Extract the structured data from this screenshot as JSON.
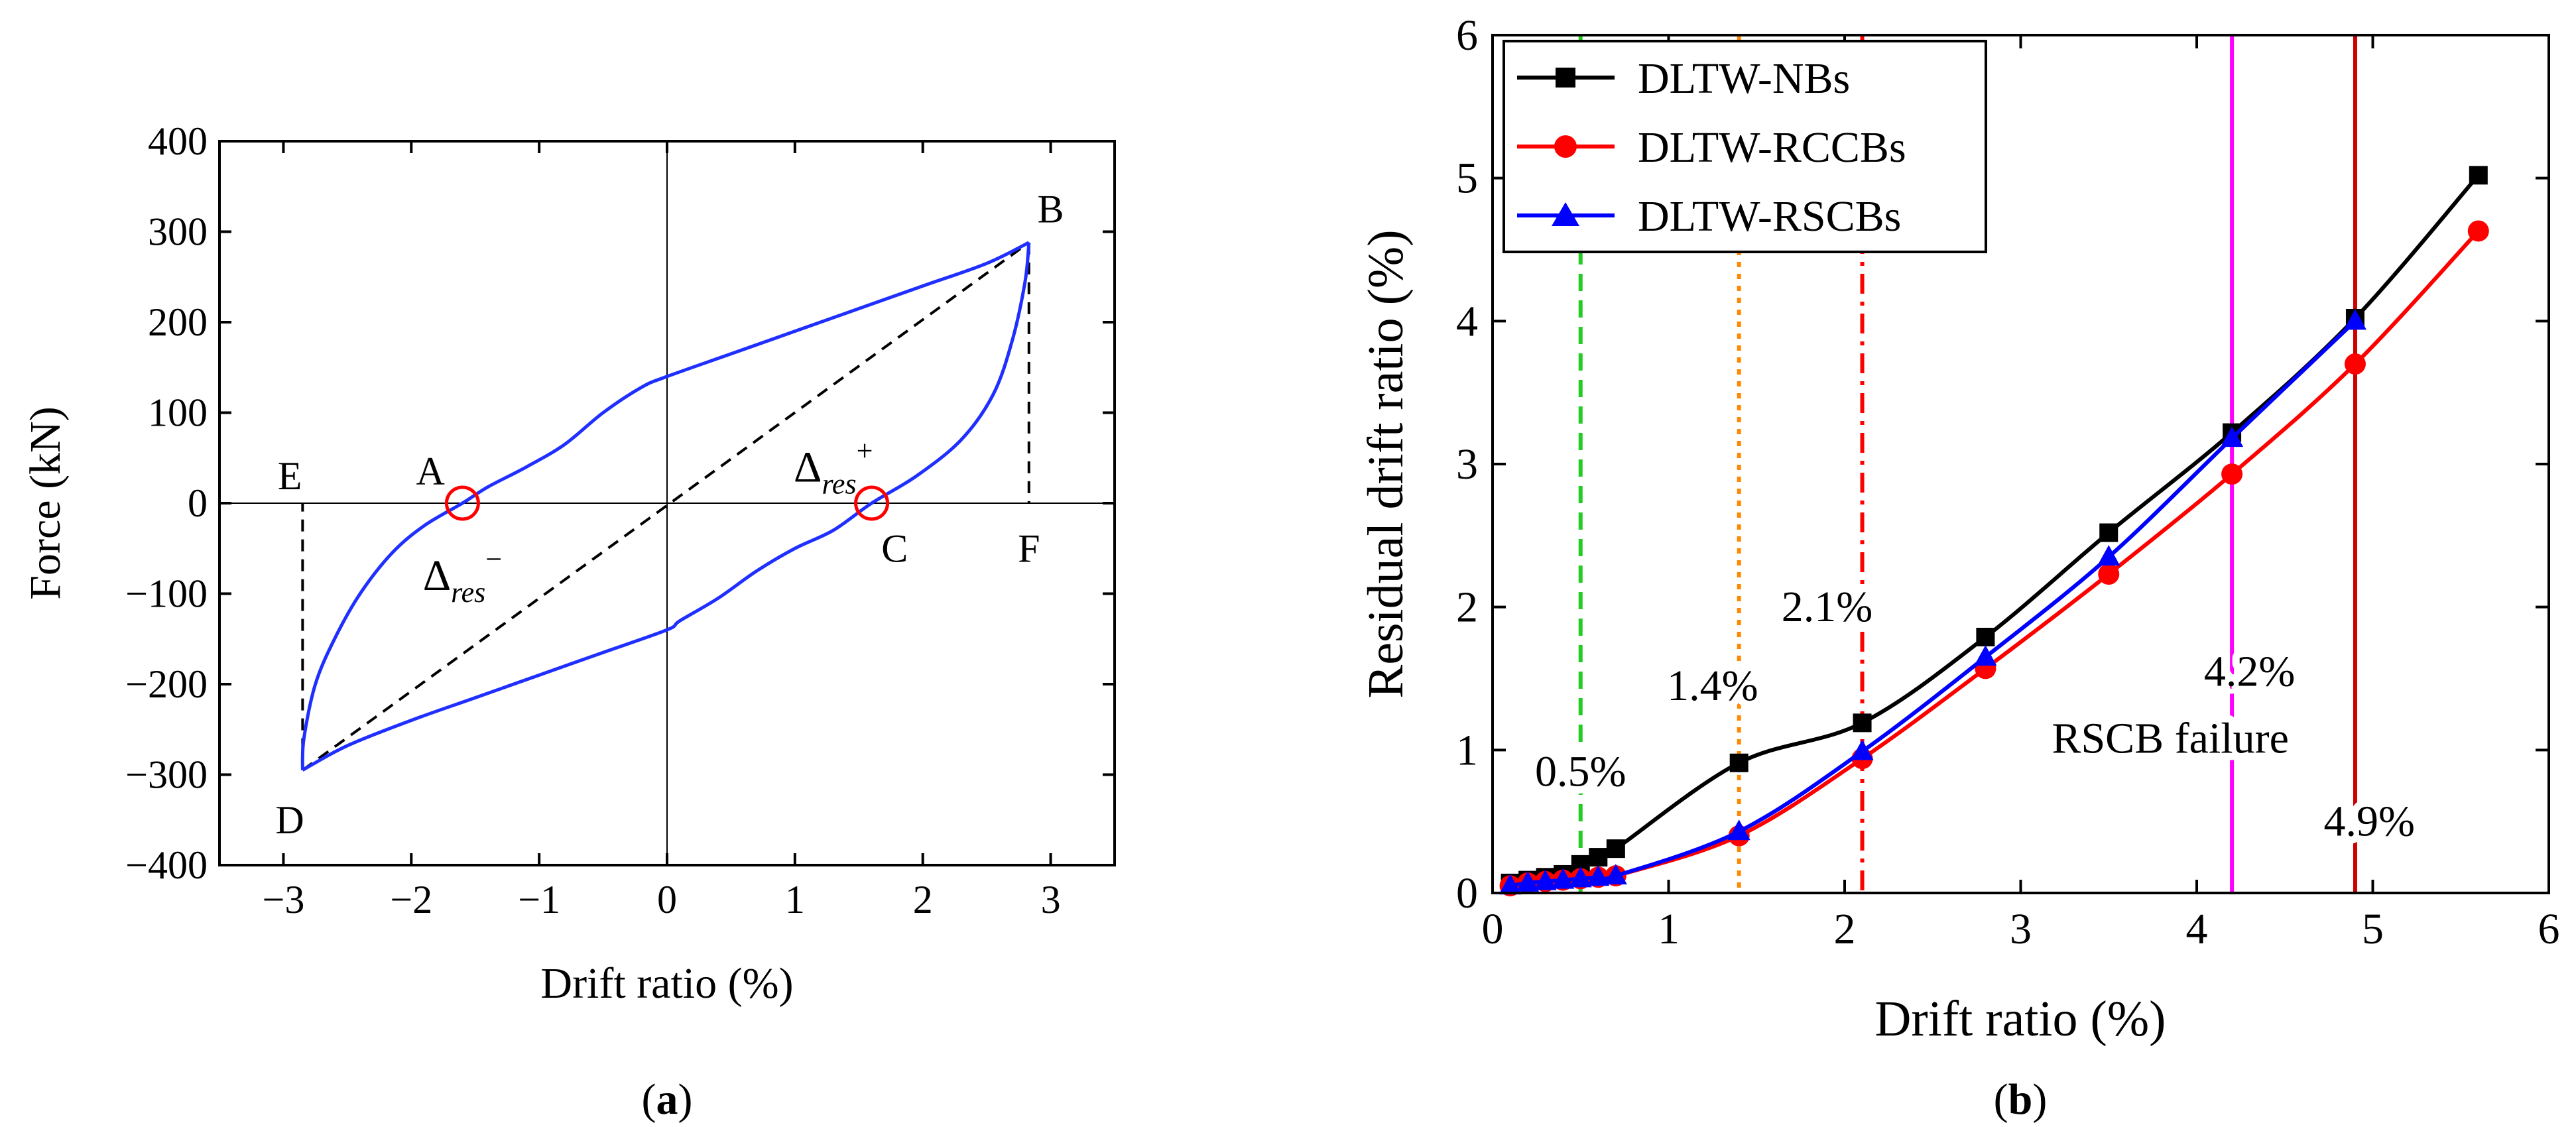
{
  "chart_data": [
    {
      "panel_label": "(a)",
      "panel_letter": "a",
      "type": "line",
      "title": "",
      "xlabel": "Drift ratio (%)",
      "ylabel": "Force (kN)",
      "xlim": [
        -3.5,
        3.5
      ],
      "ylim": [
        -400,
        400
      ],
      "xticks": [
        -3,
        -2,
        -1,
        0,
        1,
        2,
        3
      ],
      "xtick_labels": [
        "−3",
        "−2",
        "−1",
        "0",
        "1",
        "2",
        "3"
      ],
      "yticks": [
        -400,
        -300,
        -200,
        -100,
        0,
        100,
        200,
        300,
        400
      ],
      "ytick_labels": [
        "−400",
        "−300",
        "−200",
        "−100",
        "0",
        "100",
        "200",
        "300",
        "400"
      ],
      "hysteresis_loop": {
        "color": "#1f2fff",
        "upper_branch": [
          [
            -2.85,
            -295
          ],
          [
            -2.84,
            -260
          ],
          [
            -2.75,
            -200
          ],
          [
            -2.6,
            -150
          ],
          [
            -2.4,
            -100
          ],
          [
            -2.15,
            -55
          ],
          [
            -1.9,
            -25
          ],
          [
            -1.6,
            0
          ],
          [
            -1.4,
            18
          ],
          [
            -1.1,
            40
          ],
          [
            -0.8,
            65
          ],
          [
            -0.5,
            100
          ],
          [
            -0.2,
            128
          ],
          [
            0,
            140
          ],
          [
            0.5,
            165
          ],
          [
            1.0,
            190
          ],
          [
            1.5,
            215
          ],
          [
            2.0,
            240
          ],
          [
            2.5,
            265
          ],
          [
            2.83,
            288
          ]
        ],
        "lower_branch": [
          [
            2.83,
            288
          ],
          [
            2.8,
            245
          ],
          [
            2.7,
            180
          ],
          [
            2.55,
            120
          ],
          [
            2.3,
            70
          ],
          [
            1.95,
            30
          ],
          [
            1.6,
            0
          ],
          [
            1.3,
            -30
          ],
          [
            1.0,
            -50
          ],
          [
            0.7,
            -75
          ],
          [
            0.4,
            -105
          ],
          [
            0.1,
            -130
          ],
          [
            0,
            -140
          ],
          [
            -0.5,
            -165
          ],
          [
            -1.0,
            -190
          ],
          [
            -1.5,
            -215
          ],
          [
            -2.0,
            -240
          ],
          [
            -2.5,
            -268
          ],
          [
            -2.85,
            -295
          ]
        ]
      },
      "secant_line": [
        [
          -2.85,
          -295
        ],
        [
          2.83,
          288
        ]
      ],
      "drops": [
        [
          [
            -2.85,
            -295
          ],
          [
            -2.85,
            0
          ]
        ],
        [
          [
            2.83,
            288
          ],
          [
            2.83,
            0
          ]
        ]
      ],
      "residual_markers": [
        [
          -1.6,
          0
        ],
        [
          1.6,
          0
        ]
      ],
      "point_labels": [
        {
          "text": "A",
          "x": -1.85,
          "y": 35
        },
        {
          "text": "B",
          "x": 3.0,
          "y": 325
        },
        {
          "text": "C",
          "x": 1.78,
          "y": -50
        },
        {
          "text": "D",
          "x": -2.95,
          "y": -350
        },
        {
          "text": "E",
          "x": -2.95,
          "y": 30
        },
        {
          "text": "F",
          "x": 2.83,
          "y": -50
        }
      ],
      "delta_labels": [
        {
          "delta": "Δ",
          "sub": "res",
          "sup": "−",
          "x": -1.6,
          "y": -80
        },
        {
          "delta": "Δ",
          "sub": "res",
          "sup": "+",
          "x": 1.3,
          "y": 40
        }
      ]
    },
    {
      "panel_label": "(b)",
      "panel_letter": "b",
      "type": "line",
      "title": "",
      "xlabel": "Drift ratio (%)",
      "ylabel": "Residual drift ratio (%)",
      "xlim": [
        0,
        6
      ],
      "ylim": [
        0,
        6
      ],
      "xticks": [
        0,
        1,
        2,
        3,
        4,
        5,
        6
      ],
      "xtick_labels": [
        "0",
        "1",
        "2",
        "3",
        "4",
        "5",
        "6"
      ],
      "yticks": [
        0,
        1,
        2,
        3,
        4,
        5,
        6
      ],
      "ytick_labels": [
        "0",
        "1",
        "2",
        "3",
        "4",
        "5",
        "6"
      ],
      "legend_position": "top-left",
      "series": [
        {
          "name": "DLTW-NBs",
          "color": "#000000",
          "marker": "square",
          "x": [
            0.1,
            0.2,
            0.3,
            0.4,
            0.5,
            0.6,
            0.7,
            1.4,
            2.1,
            2.8,
            3.5,
            4.2,
            4.9,
            5.6
          ],
          "y": [
            0.07,
            0.09,
            0.11,
            0.13,
            0.2,
            0.25,
            0.31,
            0.91,
            1.19,
            1.79,
            2.52,
            3.22,
            4.02,
            5.02
          ]
        },
        {
          "name": "DLTW-RCCBs",
          "color": "#ff0000",
          "marker": "circle",
          "x": [
            0.1,
            0.2,
            0.3,
            0.4,
            0.5,
            0.6,
            0.7,
            1.4,
            2.1,
            2.8,
            3.5,
            4.2,
            4.9,
            5.6
          ],
          "y": [
            0.05,
            0.07,
            0.08,
            0.09,
            0.1,
            0.11,
            0.12,
            0.4,
            0.94,
            1.57,
            2.23,
            2.93,
            3.7,
            4.63
          ]
        },
        {
          "name": "DLTW-RSCBs",
          "color": "#0000ff",
          "marker": "triangle",
          "x": [
            0.1,
            0.2,
            0.3,
            0.4,
            0.5,
            0.6,
            0.7,
            1.4,
            2.1,
            2.8,
            3.5,
            4.2,
            4.9
          ],
          "y": [
            0.05,
            0.07,
            0.08,
            0.09,
            0.1,
            0.11,
            0.12,
            0.43,
            0.99,
            1.65,
            2.35,
            3.18,
            4.0
          ]
        }
      ],
      "reference_lines": [
        {
          "x": 0.5,
          "color": "#22cc22",
          "style": "dashed",
          "label": "0.5%",
          "label_x": 0.5,
          "label_y": 0.75
        },
        {
          "x": 1.4,
          "color": "#ff8800",
          "style": "dotted",
          "label": "1.4%",
          "label_x": 1.25,
          "label_y": 1.35
        },
        {
          "x": 2.1,
          "color": "#ff0000",
          "style": "dashdot",
          "label": "2.1%",
          "label_x": 1.9,
          "label_y": 1.9
        },
        {
          "x": 4.2,
          "color": "#ff00ff",
          "style": "solid",
          "label": "4.2%",
          "label_x": 4.3,
          "label_y": 1.45
        },
        {
          "x": 4.9,
          "color": "#cc0000",
          "style": "solid",
          "label": "4.9%",
          "label_x": 4.98,
          "label_y": 0.4
        }
      ],
      "annotation": {
        "text": "RSCB failure",
        "x": 3.85,
        "y": 0.98
      }
    }
  ]
}
